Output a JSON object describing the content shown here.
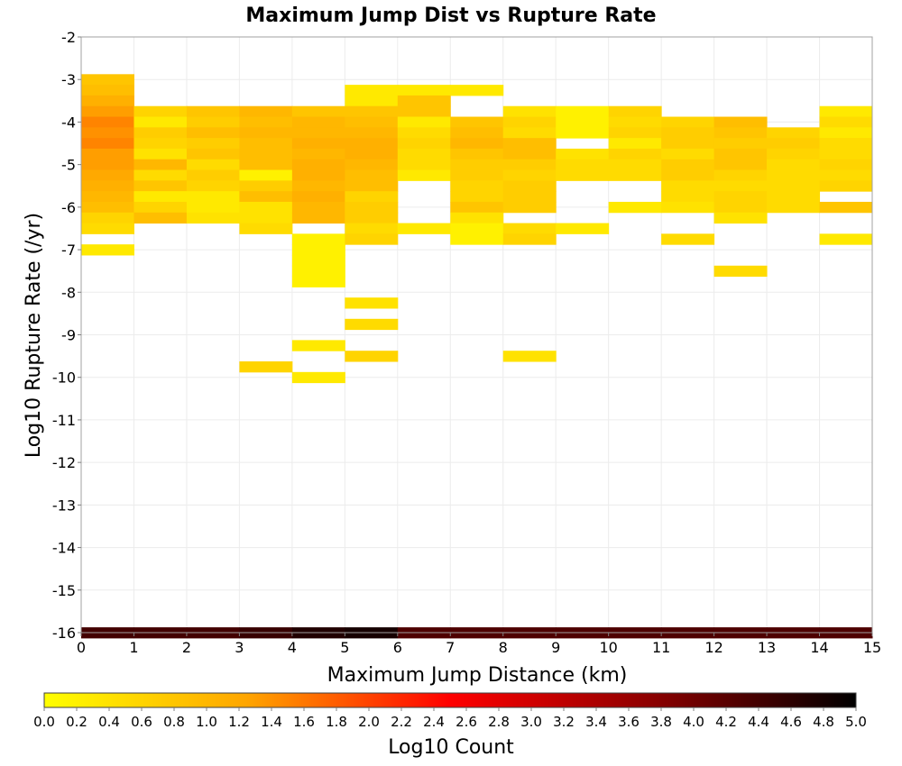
{
  "chart_data": {
    "type": "heatmap",
    "title": "Maximum Jump Dist vs Rupture Rate",
    "xlabel": "Maximum Jump Distance (km)",
    "ylabel": "Log10 Rupture Rate (/yr)",
    "xlim": [
      0,
      15
    ],
    "ylim": [
      -16,
      -2
    ],
    "x_ticks": [
      "0",
      "1",
      "2",
      "3",
      "4",
      "5",
      "6",
      "7",
      "8",
      "9",
      "10",
      "11",
      "12",
      "13",
      "14",
      "15"
    ],
    "y_ticks": [
      "-2",
      "-3",
      "-4",
      "-5",
      "-6",
      "-7",
      "-8",
      "-9",
      "-10",
      "-11",
      "-12",
      "-13",
      "-14",
      "-15",
      "-16"
    ],
    "grid": true,
    "colorbar": {
      "label": "Log10 Count",
      "min": 0.0,
      "max": 5.0,
      "ticks": [
        "0.0",
        "0.2",
        "0.4",
        "0.6",
        "0.8",
        "1.0",
        "1.2",
        "1.4",
        "1.6",
        "1.8",
        "2.0",
        "2.2",
        "2.4",
        "2.6",
        "2.8",
        "3.0",
        "3.2",
        "3.4",
        "3.6",
        "3.8",
        "4.0",
        "4.2",
        "4.4",
        "4.6",
        "4.8",
        "5.0"
      ],
      "colors": [
        "#ffff00",
        "#ffa500",
        "#ff0000",
        "#8b0000",
        "#000000"
      ]
    },
    "bin_width_x": 1,
    "bin_height_y": 0.25,
    "cells": [
      [
        0,
        -3.0,
        0.8
      ],
      [
        0,
        -3.25,
        0.9
      ],
      [
        0,
        -3.5,
        1.1
      ],
      [
        0,
        -3.75,
        1.3
      ],
      [
        0,
        -4.0,
        1.5
      ],
      [
        0,
        -4.25,
        1.4
      ],
      [
        0,
        -4.5,
        1.5
      ],
      [
        0,
        -4.75,
        1.3
      ],
      [
        0,
        -5.0,
        1.3
      ],
      [
        0,
        -5.25,
        1.2
      ],
      [
        0,
        -5.5,
        1.1
      ],
      [
        0,
        -5.75,
        1.0
      ],
      [
        0,
        -6.0,
        0.9
      ],
      [
        0,
        -6.25,
        0.6
      ],
      [
        0,
        -6.5,
        0.5
      ],
      [
        0,
        -7.0,
        0.3
      ],
      [
        1,
        -3.75,
        0.6
      ],
      [
        1,
        -4.0,
        0.3
      ],
      [
        1,
        -4.25,
        0.7
      ],
      [
        1,
        -4.5,
        0.6
      ],
      [
        1,
        -4.75,
        0.4
      ],
      [
        1,
        -5.0,
        1.0
      ],
      [
        1,
        -5.25,
        0.5
      ],
      [
        1,
        -5.5,
        0.8
      ],
      [
        1,
        -5.75,
        0.3
      ],
      [
        1,
        -6.0,
        0.6
      ],
      [
        1,
        -6.25,
        0.9
      ],
      [
        2,
        -3.75,
        0.8
      ],
      [
        2,
        -4.0,
        0.7
      ],
      [
        2,
        -4.25,
        0.9
      ],
      [
        2,
        -4.5,
        0.7
      ],
      [
        2,
        -4.75,
        0.8
      ],
      [
        2,
        -5.0,
        0.5
      ],
      [
        2,
        -5.25,
        0.7
      ],
      [
        2,
        -5.5,
        0.6
      ],
      [
        2,
        -5.75,
        0.3
      ],
      [
        2,
        -6.0,
        0.3
      ],
      [
        2,
        -6.25,
        0.4
      ],
      [
        3,
        -3.75,
        1.0
      ],
      [
        3,
        -4.0,
        0.9
      ],
      [
        3,
        -4.25,
        1.0
      ],
      [
        3,
        -4.5,
        0.9
      ],
      [
        3,
        -4.75,
        0.9
      ],
      [
        3,
        -5.0,
        0.9
      ],
      [
        3,
        -5.25,
        0.2
      ],
      [
        3,
        -5.5,
        0.7
      ],
      [
        3,
        -5.75,
        0.9
      ],
      [
        3,
        -6.0,
        0.4
      ],
      [
        3,
        -6.25,
        0.4
      ],
      [
        3,
        -6.5,
        0.5
      ],
      [
        3,
        -9.75,
        0.6
      ],
      [
        4,
        -3.75,
        0.8
      ],
      [
        4,
        -4.0,
        1.0
      ],
      [
        4,
        -4.25,
        1.0
      ],
      [
        4,
        -4.5,
        1.1
      ],
      [
        4,
        -4.75,
        1.0
      ],
      [
        4,
        -5.0,
        1.1
      ],
      [
        4,
        -5.25,
        1.1
      ],
      [
        4,
        -5.5,
        1.0
      ],
      [
        4,
        -5.75,
        1.1
      ],
      [
        4,
        -6.0,
        1.0
      ],
      [
        4,
        -6.25,
        1.0
      ],
      [
        4,
        -6.75,
        0.2
      ],
      [
        4,
        -7.0,
        0.2
      ],
      [
        4,
        -7.25,
        0.2
      ],
      [
        4,
        -7.5,
        0.2
      ],
      [
        4,
        -7.75,
        0.2
      ],
      [
        4,
        -9.25,
        0.3
      ],
      [
        4,
        -10.0,
        0.3
      ],
      [
        5,
        -3.25,
        0.3
      ],
      [
        5,
        -3.5,
        0.3
      ],
      [
        5,
        -3.75,
        0.8
      ],
      [
        5,
        -4.0,
        0.9
      ],
      [
        5,
        -4.25,
        1.0
      ],
      [
        5,
        -4.5,
        1.1
      ],
      [
        5,
        -4.75,
        1.1
      ],
      [
        5,
        -5.0,
        1.0
      ],
      [
        5,
        -5.25,
        0.9
      ],
      [
        5,
        -5.5,
        0.9
      ],
      [
        5,
        -5.75,
        0.6
      ],
      [
        5,
        -6.0,
        0.7
      ],
      [
        5,
        -6.25,
        0.7
      ],
      [
        5,
        -6.5,
        0.5
      ],
      [
        5,
        -6.75,
        0.6
      ],
      [
        5,
        -8.25,
        0.4
      ],
      [
        5,
        -8.75,
        0.5
      ],
      [
        5,
        -9.5,
        0.6
      ],
      [
        6,
        -3.25,
        0.3
      ],
      [
        6,
        -3.5,
        0.8
      ],
      [
        6,
        -3.75,
        0.8
      ],
      [
        6,
        -4.0,
        0.3
      ],
      [
        6,
        -4.25,
        0.5
      ],
      [
        6,
        -4.5,
        0.6
      ],
      [
        6,
        -4.75,
        0.5
      ],
      [
        6,
        -5.0,
        0.5
      ],
      [
        6,
        -5.25,
        0.3
      ],
      [
        6,
        -6.5,
        0.3
      ],
      [
        7,
        -3.25,
        0.3
      ],
      [
        7,
        -4.0,
        0.8
      ],
      [
        7,
        -4.25,
        0.9
      ],
      [
        7,
        -4.5,
        1.0
      ],
      [
        7,
        -4.75,
        0.8
      ],
      [
        7,
        -5.0,
        0.7
      ],
      [
        7,
        -5.25,
        0.7
      ],
      [
        7,
        -5.5,
        0.6
      ],
      [
        7,
        -5.75,
        0.6
      ],
      [
        7,
        -6.0,
        0.8
      ],
      [
        7,
        -6.25,
        0.4
      ],
      [
        7,
        -6.5,
        0.2
      ],
      [
        7,
        -6.75,
        0.2
      ],
      [
        8,
        -3.75,
        0.4
      ],
      [
        8,
        -4.0,
        0.6
      ],
      [
        8,
        -4.25,
        0.5
      ],
      [
        8,
        -4.5,
        0.9
      ],
      [
        8,
        -4.75,
        0.9
      ],
      [
        8,
        -5.0,
        0.7
      ],
      [
        8,
        -5.25,
        0.6
      ],
      [
        8,
        -5.5,
        0.7
      ],
      [
        8,
        -5.75,
        0.7
      ],
      [
        8,
        -6.0,
        0.7
      ],
      [
        8,
        -6.5,
        0.5
      ],
      [
        8,
        -6.75,
        0.6
      ],
      [
        8,
        -9.5,
        0.4
      ],
      [
        9,
        -3.75,
        0.2
      ],
      [
        9,
        -4.0,
        0.2
      ],
      [
        9,
        -4.25,
        0.2
      ],
      [
        9,
        -4.75,
        0.4
      ],
      [
        9,
        -5.0,
        0.5
      ],
      [
        9,
        -5.25,
        0.5
      ],
      [
        9,
        -6.5,
        0.3
      ],
      [
        10,
        -3.75,
        0.6
      ],
      [
        10,
        -4.0,
        0.5
      ],
      [
        10,
        -4.25,
        0.6
      ],
      [
        10,
        -4.5,
        0.3
      ],
      [
        10,
        -4.75,
        0.6
      ],
      [
        10,
        -5.0,
        0.5
      ],
      [
        10,
        -5.25,
        0.5
      ],
      [
        10,
        -6.0,
        0.3
      ],
      [
        11,
        -4.0,
        0.6
      ],
      [
        11,
        -4.25,
        0.7
      ],
      [
        11,
        -4.5,
        0.7
      ],
      [
        11,
        -4.75,
        0.5
      ],
      [
        11,
        -5.0,
        0.7
      ],
      [
        11,
        -5.25,
        0.7
      ],
      [
        11,
        -5.5,
        0.5
      ],
      [
        11,
        -5.75,
        0.5
      ],
      [
        11,
        -6.0,
        0.4
      ],
      [
        11,
        -6.75,
        0.5
      ],
      [
        12,
        -4.0,
        0.9
      ],
      [
        12,
        -4.25,
        0.8
      ],
      [
        12,
        -4.5,
        0.7
      ],
      [
        12,
        -4.75,
        0.8
      ],
      [
        12,
        -5.0,
        0.8
      ],
      [
        12,
        -5.25,
        0.6
      ],
      [
        12,
        -5.5,
        0.5
      ],
      [
        12,
        -5.75,
        0.6
      ],
      [
        12,
        -6.0,
        0.6
      ],
      [
        12,
        -6.25,
        0.4
      ],
      [
        12,
        -7.5,
        0.5
      ],
      [
        13,
        -4.25,
        0.6
      ],
      [
        13,
        -4.5,
        0.7
      ],
      [
        13,
        -4.75,
        0.6
      ],
      [
        13,
        -5.0,
        0.5
      ],
      [
        13,
        -5.25,
        0.5
      ],
      [
        13,
        -5.5,
        0.5
      ],
      [
        13,
        -5.75,
        0.5
      ],
      [
        13,
        -6.0,
        0.5
      ],
      [
        14,
        -3.75,
        0.3
      ],
      [
        14,
        -4.0,
        0.5
      ],
      [
        14,
        -4.25,
        0.3
      ],
      [
        14,
        -4.5,
        0.5
      ],
      [
        14,
        -4.75,
        0.5
      ],
      [
        14,
        -5.0,
        0.6
      ],
      [
        14,
        -5.25,
        0.5
      ],
      [
        14,
        -5.5,
        0.6
      ],
      [
        14,
        -6.0,
        0.8
      ],
      [
        14,
        -6.75,
        0.3
      ],
      [
        0,
        -16.0,
        4.4
      ],
      [
        1,
        -16.0,
        4.4
      ],
      [
        2,
        -16.0,
        4.4
      ],
      [
        3,
        -16.0,
        4.5
      ],
      [
        4,
        -16.0,
        4.7
      ],
      [
        5,
        -16.0,
        4.8
      ],
      [
        6,
        -16.0,
        4.3
      ],
      [
        7,
        -16.0,
        4.3
      ],
      [
        8,
        -16.0,
        4.3
      ],
      [
        9,
        -16.0,
        4.3
      ],
      [
        10,
        -16.0,
        4.3
      ],
      [
        11,
        -16.0,
        4.3
      ],
      [
        12,
        -16.0,
        4.3
      ],
      [
        13,
        -16.0,
        4.3
      ],
      [
        14,
        -16.0,
        4.3
      ]
    ]
  }
}
